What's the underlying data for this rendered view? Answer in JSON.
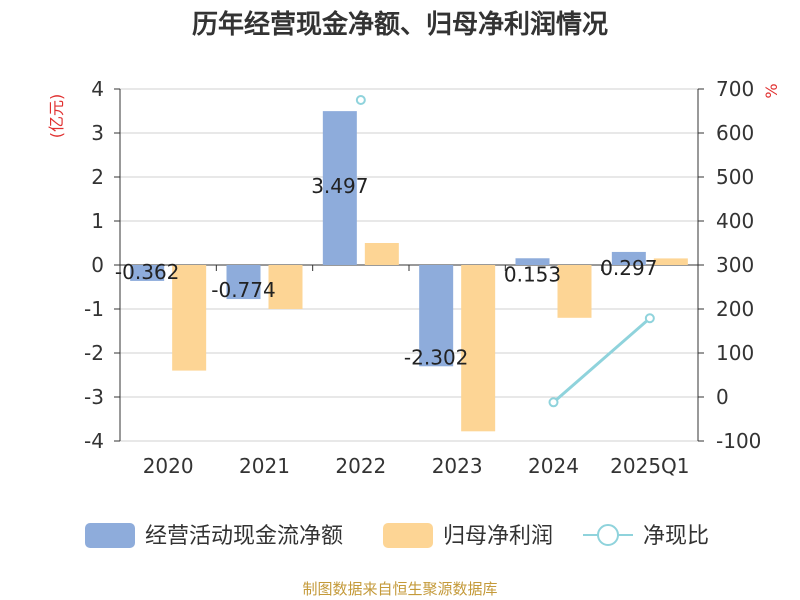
{
  "title": "历年经营现金净额、归母净利润情况",
  "source_note": "制图数据来自恒生聚源数据库",
  "colors": {
    "cash": "#8eacdb",
    "profit": "#fdd595",
    "ratio": "#8fd3dc",
    "unit": "#e03030"
  },
  "chart_data": {
    "type": "bar",
    "categories": [
      "2020",
      "2021",
      "2022",
      "2023",
      "2024",
      "2025Q1"
    ],
    "y_left": {
      "label": "(亿元)",
      "min": -4,
      "max": 4,
      "ticks": [
        4,
        3,
        2,
        1,
        0,
        -1,
        -2,
        -3,
        -4
      ]
    },
    "y_right": {
      "label": "%",
      "min": -100,
      "max": 700,
      "ticks": [
        700,
        600,
        500,
        400,
        300,
        200,
        100,
        0,
        -100
      ]
    },
    "series": [
      {
        "name": "经营活动现金流净额",
        "kind": "bar",
        "axis": "left",
        "color": "#8eacdb",
        "values": [
          -0.362,
          -0.774,
          3.497,
          -2.302,
          0.153,
          0.297
        ],
        "labels": [
          "-0.362",
          "-0.774",
          "3.497",
          "-2.302",
          "0.153",
          "0.297"
        ]
      },
      {
        "name": "归母净利润",
        "kind": "bar",
        "axis": "left",
        "color": "#fdd595",
        "values": [
          -2.4,
          -1.0,
          0.5,
          -3.78,
          -1.2,
          0.15
        ]
      },
      {
        "name": "净现比",
        "kind": "line",
        "axis": "right",
        "color": "#8fd3dc",
        "values": [
          null,
          null,
          675,
          null,
          -12,
          179
        ]
      }
    ],
    "legend_position": "bottom",
    "grid": true
  }
}
